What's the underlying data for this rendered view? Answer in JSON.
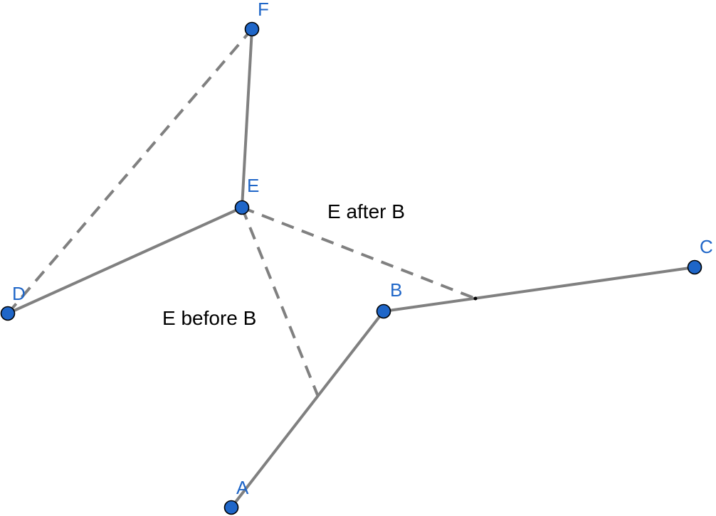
{
  "points": {
    "A": {
      "label": "A"
    },
    "B": {
      "label": "B"
    },
    "C": {
      "label": "C"
    },
    "D": {
      "label": "D"
    },
    "E": {
      "label": "E"
    },
    "F": {
      "label": "F"
    }
  },
  "annotations": {
    "e_after_b": "E after B",
    "e_before_b": "E before B"
  },
  "colors": {
    "point_fill": "#1f66c8",
    "segment": "#808080",
    "label": "#1f66c8",
    "annotation": "#000000"
  }
}
